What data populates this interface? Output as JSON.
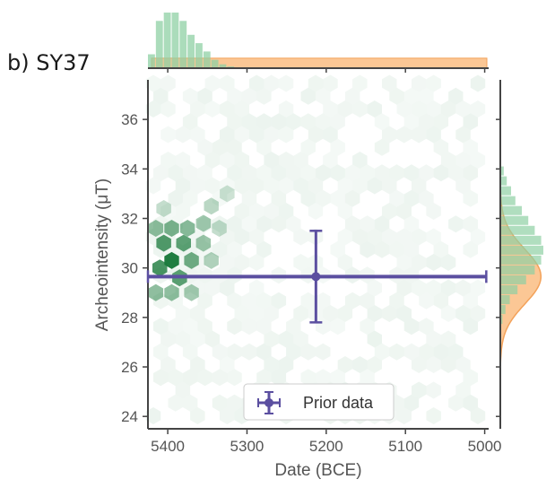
{
  "panel_label": "b) SY37",
  "chart_data": {
    "type": "hexbin-joint",
    "xlabel": "Date (BCE)",
    "ylabel": "Archeointensity (μT)",
    "xlim": [
      5425,
      4995
    ],
    "ylim": [
      23.5,
      37.6
    ],
    "x_reversed": true,
    "x_ticks": [
      5400,
      5300,
      5200,
      5100,
      5000
    ],
    "y_ticks": [
      24,
      26,
      28,
      30,
      32,
      34,
      36
    ],
    "colors": {
      "hexbin": "#1b7a3c",
      "posterior_hist": "#8fd0a4",
      "prior_hist": "#f9b472",
      "prior_marker": "#5b4fa0",
      "axis": "#444444"
    },
    "prior_point": {
      "label": "Prior data",
      "x": 5213,
      "y": 29.65,
      "x_range": [
        5425,
        4998
      ],
      "y_range": [
        27.8,
        31.5
      ]
    },
    "legend": {
      "entries": [
        "Prior data"
      ],
      "position": "lower-center"
    },
    "hex_density": [
      {
        "x": 5395,
        "y": 30.3,
        "w": 1.0
      },
      {
        "x": 5405,
        "y": 31.0,
        "w": 0.75
      },
      {
        "x": 5380,
        "y": 31.0,
        "w": 0.7
      },
      {
        "x": 5410,
        "y": 30.0,
        "w": 0.8
      },
      {
        "x": 5385,
        "y": 29.6,
        "w": 0.7
      },
      {
        "x": 5370,
        "y": 30.3,
        "w": 0.6
      },
      {
        "x": 5415,
        "y": 31.6,
        "w": 0.45
      },
      {
        "x": 5395,
        "y": 31.6,
        "w": 0.55
      },
      {
        "x": 5375,
        "y": 31.6,
        "w": 0.5
      },
      {
        "x": 5355,
        "y": 31.0,
        "w": 0.4
      },
      {
        "x": 5355,
        "y": 31.8,
        "w": 0.35
      },
      {
        "x": 5345,
        "y": 30.3,
        "w": 0.3
      },
      {
        "x": 5415,
        "y": 29.0,
        "w": 0.45
      },
      {
        "x": 5395,
        "y": 29.0,
        "w": 0.45
      },
      {
        "x": 5370,
        "y": 29.0,
        "w": 0.35
      },
      {
        "x": 5345,
        "y": 32.5,
        "w": 0.25
      },
      {
        "x": 5325,
        "y": 33.0,
        "w": 0.15
      },
      {
        "x": 5335,
        "y": 31.6,
        "w": 0.2
      },
      {
        "x": 5405,
        "y": 32.4,
        "w": 0.2
      }
    ],
    "x_marginal": {
      "posterior": [
        {
          "x": 5420,
          "h": 0.25
        },
        {
          "x": 5410,
          "h": 0.85
        },
        {
          "x": 5400,
          "h": 1.0
        },
        {
          "x": 5390,
          "h": 1.0
        },
        {
          "x": 5380,
          "h": 0.85
        },
        {
          "x": 5370,
          "h": 0.6
        },
        {
          "x": 5360,
          "h": 0.45
        },
        {
          "x": 5350,
          "h": 0.3
        },
        {
          "x": 5340,
          "h": 0.15
        },
        {
          "x": 5330,
          "h": 0.07
        },
        {
          "x": 5320,
          "h": 0.03
        }
      ],
      "prior_level": 0.18
    },
    "y_marginal": {
      "posterior": [
        {
          "y": 33.9,
          "h": 0.08
        },
        {
          "y": 33.5,
          "h": 0.15
        },
        {
          "y": 33.1,
          "h": 0.25
        },
        {
          "y": 32.7,
          "h": 0.35
        },
        {
          "y": 32.3,
          "h": 0.5
        },
        {
          "y": 31.9,
          "h": 0.65
        },
        {
          "y": 31.5,
          "h": 0.8
        },
        {
          "y": 31.1,
          "h": 0.95
        },
        {
          "y": 30.7,
          "h": 1.0
        },
        {
          "y": 30.3,
          "h": 0.95
        },
        {
          "y": 29.9,
          "h": 0.8
        },
        {
          "y": 29.5,
          "h": 0.6
        },
        {
          "y": 29.1,
          "h": 0.4
        },
        {
          "y": 28.7,
          "h": 0.22
        },
        {
          "y": 28.3,
          "h": 0.12
        },
        {
          "y": 27.9,
          "h": 0.05
        }
      ],
      "prior_sigma": 1.1,
      "prior_mean": 29.65,
      "prior_peak": 0.7
    }
  }
}
